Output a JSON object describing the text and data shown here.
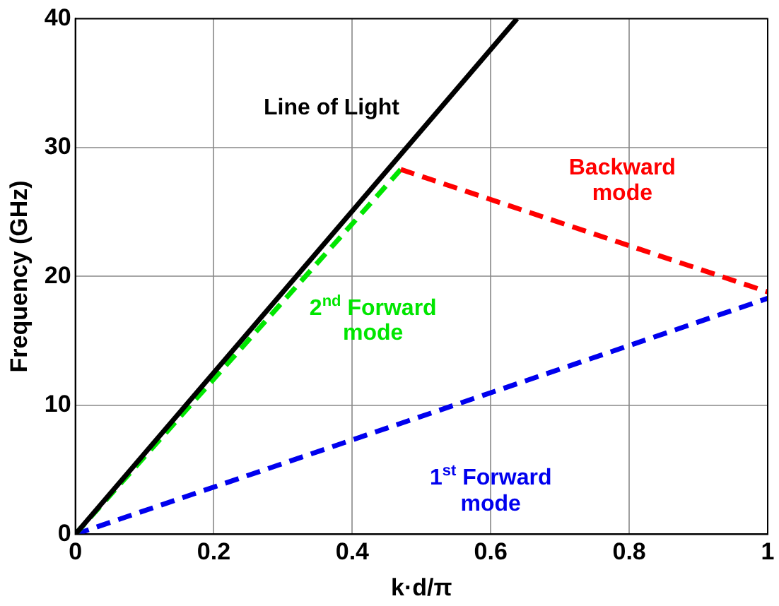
{
  "chart_data": {
    "type": "line",
    "xlabel": "k·d/π",
    "ylabel": "Frequency (GHz)",
    "xlim": [
      0,
      1
    ],
    "ylim": [
      0,
      40
    ],
    "xticks": [
      0,
      0.2,
      0.4,
      0.6,
      0.8,
      1
    ],
    "yticks": [
      0,
      10,
      20,
      30,
      40
    ],
    "grid": true,
    "legend": false,
    "marker": "none",
    "series": [
      {
        "name": "Line of Light",
        "color": "#000000",
        "line_style": "solid",
        "x": [
          0,
          0.638
        ],
        "values": [
          0,
          40
        ]
      },
      {
        "name": "Backward mode",
        "color": "#ff0000",
        "line_style": "dashed",
        "x": [
          0.47,
          1
        ],
        "values": [
          28.3,
          18.8
        ]
      },
      {
        "name": "2$^{nd}$ Forward mode",
        "color": "#00e600",
        "line_style": "dashed",
        "x": [
          0,
          0.47
        ],
        "values": [
          0,
          28.3
        ]
      },
      {
        "name": "1$^{st}$ Forward mode",
        "color": "#0000ee",
        "line_style": "dashed",
        "x": [
          0,
          1
        ],
        "values": [
          0,
          18.3
        ]
      }
    ]
  }
}
